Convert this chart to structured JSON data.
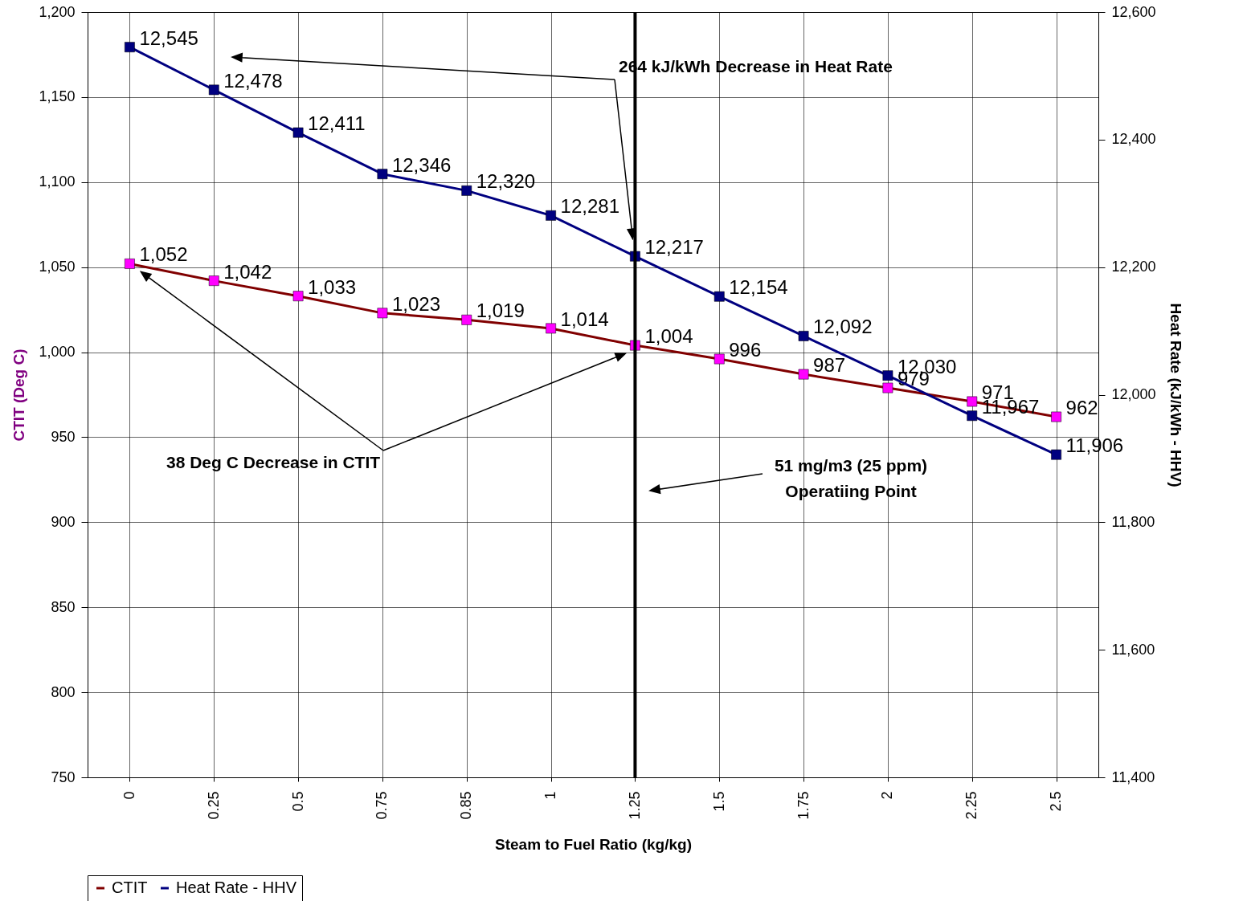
{
  "chart_data": {
    "type": "line",
    "xlabel": "Steam to Fuel Ratio (kg/kg)",
    "ylabel": "CTIT (Deg C)",
    "y2label": "Heat Rate (kJ/kWh - HHV)",
    "categories": [
      "0",
      "0.25",
      "0.5",
      "0.75",
      "0.85",
      "1",
      "1.25",
      "1.5",
      "1.75",
      "2",
      "2.25",
      "2.5"
    ],
    "series": [
      {
        "name": "CTIT",
        "color": "#800000",
        "colors": [
          "#ff00ff",
          "#ff00ff",
          "#ff00ff",
          "#ff00ff",
          "#ff00ff",
          "#ff00ff",
          "#ff00ff",
          "#ff00ff",
          "#ff00ff",
          "#ff00ff",
          "#ff00ff",
          "#ff00ff"
        ],
        "values": [
          1052,
          1042,
          1033,
          1023,
          1019,
          1014,
          1004,
          996,
          987,
          979,
          971,
          962
        ],
        "value_labels": [
          "1,052",
          "1,042",
          "1,033",
          "1,023",
          "1,019",
          "1,014",
          "1,004",
          "996",
          "987",
          "979",
          "971",
          "962"
        ]
      },
      {
        "name": "Heat Rate - HHV",
        "color": "#000080",
        "axis": "y2",
        "values": [
          12545,
          12478,
          12411,
          12346,
          12320,
          12281,
          12217,
          12154,
          12092,
          12030,
          11967,
          11906
        ],
        "value_labels": [
          "12,545",
          "12,478",
          "12,411",
          "12,346",
          "12,320",
          "12,281",
          "12,217",
          "12,154",
          "12,092",
          "12,030",
          "11,967",
          "11,906"
        ]
      }
    ],
    "ylim": [
      750,
      1200
    ],
    "yticks": [
      {
        "value": 750,
        "label": "750"
      },
      {
        "value": 800,
        "label": "800"
      },
      {
        "value": 850,
        "label": "850"
      },
      {
        "value": 900,
        "label": "900"
      },
      {
        "value": 950,
        "label": "950"
      },
      {
        "value": 1000,
        "label": "1,000"
      },
      {
        "value": 1050,
        "label": "1,050"
      },
      {
        "value": 1100,
        "label": "1,100"
      },
      {
        "value": 1150,
        "label": "1,150"
      },
      {
        "value": 1200,
        "label": "1,200"
      }
    ],
    "y2lim": [
      11400,
      12600
    ],
    "y2ticks": [
      {
        "value": 11400,
        "label": "11,400"
      },
      {
        "value": 11600,
        "label": "11,600"
      },
      {
        "value": 11800,
        "label": "11,800"
      },
      {
        "value": 12000,
        "label": "12,000"
      },
      {
        "value": 12200,
        "label": "12,200"
      },
      {
        "value": 12400,
        "label": "12,400"
      },
      {
        "value": 12600,
        "label": "12,600"
      }
    ],
    "marker": "square",
    "grid": true,
    "legend": "bottom",
    "ref_lines": [
      {
        "axis": "x",
        "value": "1.25",
        "color": "#000000"
      }
    ],
    "annotations": [
      "264 kJ/kWh Decrease in Heat Rate",
      "38 Deg C Decrease in CTIT",
      "51 mg/m3 (25 ppm)\nOperatiing Point"
    ]
  }
}
